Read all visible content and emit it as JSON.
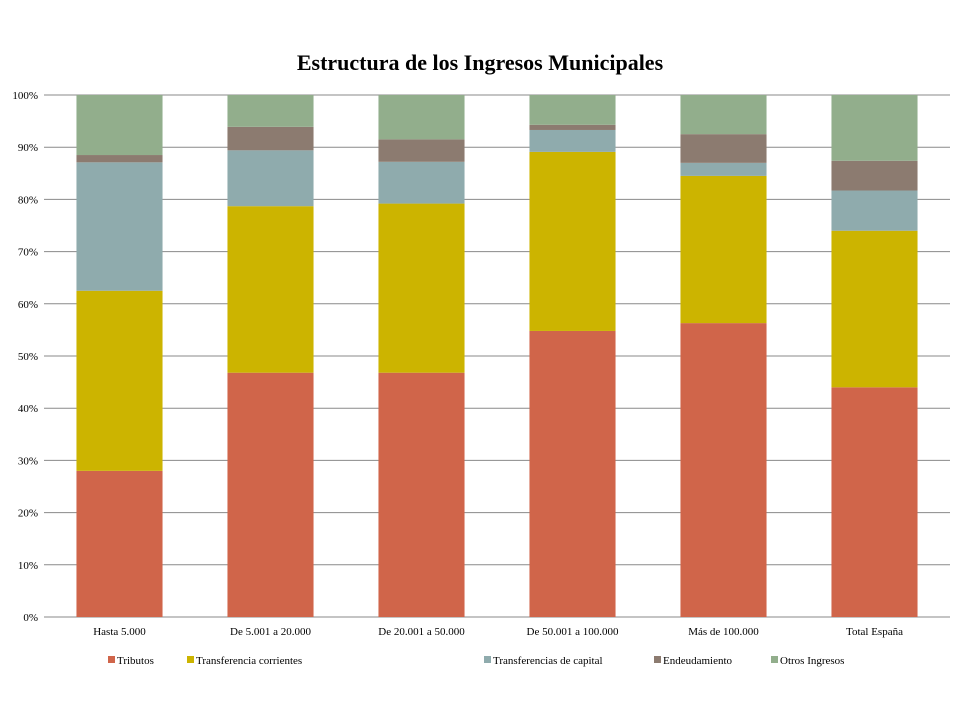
{
  "chart_data": {
    "type": "bar",
    "stacked": true,
    "title": "Estructura de los Ingresos Municipales",
    "categories": [
      "Hasta 5.000",
      "De 5.001 a 20.000",
      "De 20.001 a 50.000",
      "De 50.001 a 100.000",
      "Más de 100.000",
      "Total España"
    ],
    "yticks": [
      "0%",
      "10%",
      "20%",
      "30%",
      "40%",
      "50%",
      "60%",
      "70%",
      "80%",
      "90%",
      "100%"
    ],
    "ylim": [
      0,
      100
    ],
    "grid": true,
    "legend_position": "bottom",
    "series": [
      {
        "name": "Tributos",
        "color": "#d0654a",
        "values": [
          28.0,
          46.8,
          46.8,
          54.8,
          56.3,
          44.0
        ]
      },
      {
        "name": "Transferencia corrientes",
        "color": "#ccb400",
        "values": [
          34.5,
          31.9,
          32.4,
          34.3,
          28.2,
          30.0
        ]
      },
      {
        "name": "Transferencias de capital",
        "color": "#8fabad",
        "values": [
          24.6,
          10.7,
          8.0,
          4.2,
          2.5,
          7.7
        ]
      },
      {
        "name": "Endeudamiento",
        "color": "#8c7b70",
        "values": [
          1.4,
          4.5,
          4.3,
          1.0,
          5.5,
          5.7
        ]
      },
      {
        "name": "Otros Ingresos",
        "color": "#92ae8c",
        "values": [
          11.5,
          6.1,
          8.5,
          5.7,
          7.5,
          12.6
        ]
      }
    ]
  }
}
